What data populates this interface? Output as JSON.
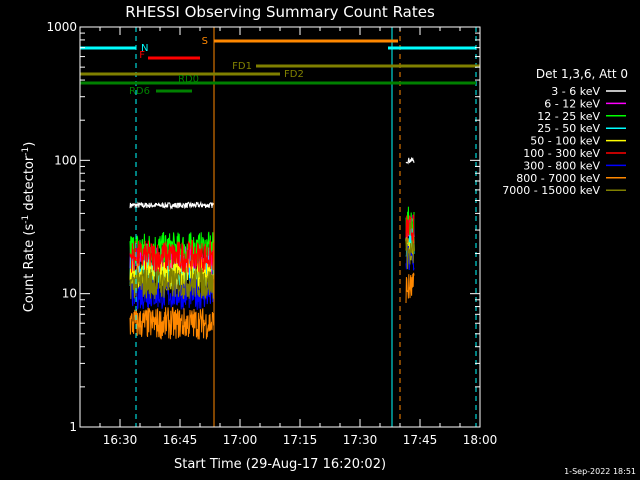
{
  "chart_data": {
    "type": "line",
    "title": "RHESSI Observing Summary Count Rates",
    "xlabel": "Start Time (29-Aug-17 16:20:02)",
    "ylabel_main": "Count Rate (s",
    "ylabel_sup1": "-1",
    "ylabel_mid": " detector",
    "ylabel_sup2": "-1",
    "ylabel_end": ")",
    "yscale": "log",
    "ylim": [
      1,
      1000
    ],
    "xlim_minutes": [
      "16:20",
      "18:00"
    ],
    "x_ticks": [
      {
        "minute": 990,
        "label": "16:30"
      },
      {
        "minute": 1005,
        "label": "16:45"
      },
      {
        "minute": 1020,
        "label": "17:00"
      },
      {
        "minute": 1035,
        "label": "17:15"
      },
      {
        "minute": 1050,
        "label": "17:30"
      },
      {
        "minute": 1065,
        "label": "17:45"
      },
      {
        "minute": 1080,
        "label": "18:00"
      }
    ],
    "y_ticks": [
      {
        "value": 1,
        "label": "1"
      },
      {
        "value": 10,
        "label": "10"
      },
      {
        "value": 100,
        "label": "100"
      },
      {
        "value": 1000,
        "label": "1000"
      }
    ],
    "legend_title": "Det 1,3,6, Att 0",
    "series": [
      {
        "name": "3 - 6 keV",
        "color": "#ffffff",
        "level_a": 46,
        "level_b": 100
      },
      {
        "name": "6 - 12 keV",
        "color": "#ff00ff",
        "level_a": 18,
        "level_b": 30
      },
      {
        "name": "12 - 25 keV",
        "color": "#00ff00",
        "level_a": 22,
        "level_b": 34
      },
      {
        "name": "25 - 50 keV",
        "color": "#00ffff",
        "level_a": 15,
        "level_b": 25
      },
      {
        "name": "50 - 100 keV",
        "color": "#ffff00",
        "level_a": 14,
        "level_b": 22
      },
      {
        "name": "100 - 300 keV",
        "color": "#ff0000",
        "level_a": 19,
        "level_b": 30
      },
      {
        "name": "300 - 800 keV",
        "color": "#0000ff",
        "level_a": 10,
        "level_b": 18
      },
      {
        "name": "800 - 7000 keV",
        "color": "#ff8800",
        "level_a": 6,
        "level_b": 11
      },
      {
        "name": "7000 - 15000 keV",
        "color": "#808000",
        "level_a": 12,
        "level_b": 20
      }
    ],
    "segment_a_minutes": [
      992.5,
      1013.5
    ],
    "segment_b_minutes": [
      1061.5,
      1063.5
    ],
    "flag_bars": [
      {
        "label": "N",
        "color": "#00ffff",
        "segments": [
          [
            980,
            994
          ],
          [
            1057,
            1079
          ]
        ]
      },
      {
        "label": "F",
        "color": "#ff0000",
        "segments": [
          [
            997,
            1010
          ]
        ]
      },
      {
        "label": "S",
        "color": "#ff8800",
        "segments": [
          [
            1013.5,
            1059.5
          ]
        ]
      },
      {
        "label": "FD1",
        "color": "#808000",
        "segments": [
          [
            1024,
            1080
          ]
        ]
      },
      {
        "label": "FD2",
        "color": "#808000",
        "segments": [
          [
            980,
            1030
          ]
        ]
      },
      {
        "label": "RD0",
        "color": "#008000",
        "segments": [
          [
            980,
            1079
          ]
        ]
      },
      {
        "label": "RD6",
        "color": "#008000",
        "segments": [
          [
            999,
            1008
          ]
        ]
      }
    ],
    "vertical_markers": [
      {
        "minute": 980,
        "color": "#00ffff",
        "dashed": false
      },
      {
        "minute": 994,
        "color": "#00ffff",
        "dashed": true
      },
      {
        "minute": 1013.5,
        "color": "#ff8800",
        "dashed": false
      },
      {
        "minute": 1058,
        "color": "#00ffff",
        "dashed": false
      },
      {
        "minute": 1060,
        "color": "#ff8800",
        "dashed": true
      },
      {
        "minute": 1079,
        "color": "#00ffff",
        "dashed": true
      }
    ]
  },
  "footer_timestamp": "1-Sep-2022 18:51"
}
